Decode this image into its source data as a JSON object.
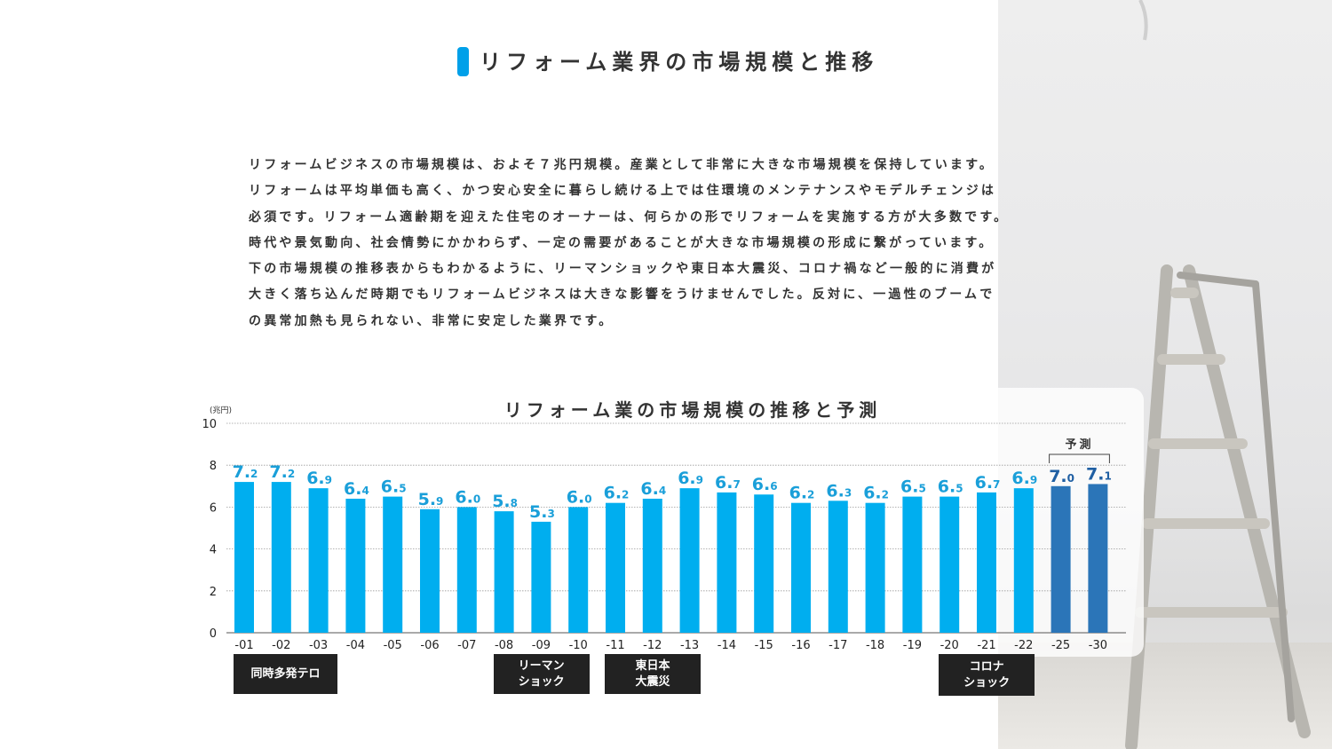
{
  "header": {
    "title": "リフォーム業界の市場規模と推移"
  },
  "intro": {
    "lines": [
      "リフォームビジネスの市場規模は、およそ７兆円規模。産業として非常に大きな市場規模を保持しています。",
      "リフォームは平均単価も高く、かつ安心安全に暮らし続ける上では住環境のメンテナンスやモデルチェンジは",
      "必須です。リフォーム適齢期を迎えた住宅のオーナーは、何らかの形でリフォームを実施する方が大多数です。",
      "時代や景気動向、社会情勢にかかわらず、一定の需要があることが大きな市場規模の形成に繋がっています。",
      "下の市場規模の推移表からもわかるように、リーマンショックや東日本大震災、コロナ禍など一般的に消費が",
      "大きく落ち込んだ時期でもリフォームビジネスは大きな影響をうけませんでした。反対に、一過性のブームで",
      "の異常加熱も見られない、非常に安定した業界です。"
    ]
  },
  "chart_data": {
    "type": "bar",
    "title": "リフォーム業の市場規模の推移と予測",
    "ylabel": "(兆円)",
    "ylim": [
      0,
      10
    ],
    "yticks": [
      0,
      2,
      4,
      6,
      8,
      10
    ],
    "grid": true,
    "categories": [
      "-01",
      "-02",
      "-03",
      "-04",
      "-05",
      "-06",
      "-07",
      "-08",
      "-09",
      "-10",
      "-11",
      "-12",
      "-13",
      "-14",
      "-15",
      "-16",
      "-17",
      "-18",
      "-19",
      "-20",
      "-21",
      "-22",
      "-25",
      "-30"
    ],
    "values": [
      7.2,
      7.2,
      6.9,
      6.4,
      6.5,
      5.9,
      6.0,
      5.8,
      5.3,
      6.0,
      6.2,
      6.4,
      6.9,
      6.7,
      6.6,
      6.2,
      6.3,
      6.2,
      6.5,
      6.5,
      6.7,
      6.9,
      7.0,
      7.1
    ],
    "forecast_label": "予測",
    "forecast_categories": [
      "-25",
      "-30"
    ],
    "colors": {
      "actual": "#00aeef",
      "forecast": "#2b75b8",
      "label_actual": "#1a9fd9",
      "label_forecast": "#1f5fa3"
    }
  },
  "events": [
    {
      "label": "同時多発テロ",
      "category": "-01"
    },
    {
      "label": "リーマン\nショック",
      "category": "-08"
    },
    {
      "label": "東日本\n大震災",
      "category": "-11"
    },
    {
      "label": "コロナ\nショック",
      "category": "-20"
    }
  ]
}
